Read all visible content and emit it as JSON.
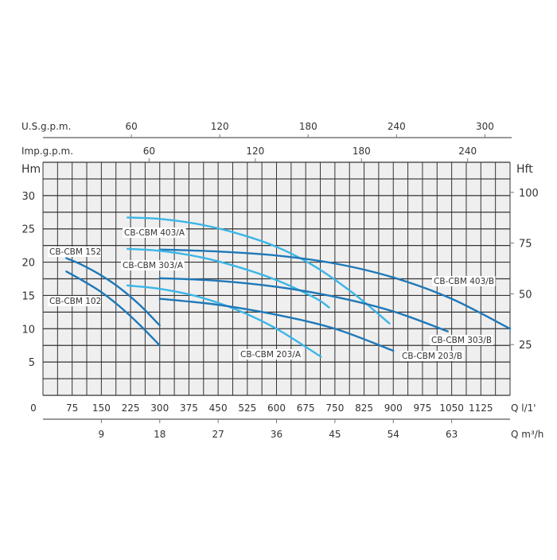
{
  "chart_data": {
    "type": "line",
    "title": "",
    "x_axis_bottom": {
      "label": "Q l/1'",
      "range": [
        0,
        1200
      ],
      "ticks": [
        0,
        75,
        150,
        225,
        300,
        375,
        450,
        525,
        600,
        675,
        750,
        825,
        900,
        975,
        1050,
        1125
      ]
    },
    "x_axis_m3h": {
      "label": "Q m³/h",
      "ticks": [
        9,
        18,
        27,
        36,
        45,
        54,
        63
      ]
    },
    "x_axis_usgpm": {
      "label": "U.S.g.p.m.",
      "ticks": [
        60,
        120,
        180,
        240,
        300
      ]
    },
    "x_axis_impgpm": {
      "label": "Imp.g.p.m.",
      "ticks": [
        60,
        120,
        180,
        240
      ]
    },
    "y_axis_left": {
      "label": "Hm",
      "range": [
        0,
        35
      ],
      "ticks": [
        5,
        10,
        15,
        20,
        25,
        30
      ]
    },
    "y_axis_right": {
      "label": "Hft",
      "ticks": [
        25,
        50,
        75,
        100
      ]
    },
    "grid": true,
    "colors": {
      "light": "#3cb6e6",
      "dark": "#1f78b8",
      "plot_bg": "#efefef",
      "grid": "#333333"
    },
    "series": [
      {
        "name": "CB-CBM 152",
        "color": "dark",
        "points": [
          [
            60,
            20.6
          ],
          [
            100,
            19.6
          ],
          [
            150,
            18.0
          ],
          [
            200,
            16.0
          ],
          [
            250,
            13.5
          ],
          [
            300,
            10.5
          ]
        ]
      },
      {
        "name": "CB-CBM 102",
        "color": "dark",
        "points": [
          [
            60,
            18.6
          ],
          [
            100,
            17.3
          ],
          [
            150,
            15.5
          ],
          [
            200,
            13.2
          ],
          [
            250,
            10.5
          ],
          [
            300,
            7.5
          ]
        ]
      },
      {
        "name": "CB-CBM 403/A",
        "color": "light",
        "points": [
          [
            217,
            26.7
          ],
          [
            300,
            26.5
          ],
          [
            400,
            25.7
          ],
          [
            500,
            24.3
          ],
          [
            600,
            22.3
          ],
          [
            700,
            19.3
          ],
          [
            800,
            15.2
          ],
          [
            890,
            10.8
          ]
        ]
      },
      {
        "name": "CB-CBM 403/B",
        "color": "dark",
        "points": [
          [
            300,
            21.9
          ],
          [
            450,
            21.6
          ],
          [
            600,
            21.0
          ],
          [
            750,
            19.8
          ],
          [
            900,
            17.7
          ],
          [
            1050,
            14.5
          ],
          [
            1200,
            10.0
          ]
        ]
      },
      {
        "name": "CB-CBM 303/A",
        "color": "light",
        "points": [
          [
            217,
            22.0
          ],
          [
            300,
            21.7
          ],
          [
            400,
            20.8
          ],
          [
            500,
            19.3
          ],
          [
            600,
            17.3
          ],
          [
            700,
            14.6
          ],
          [
            735,
            13.2
          ]
        ]
      },
      {
        "name": "CB-CBM 303/B",
        "color": "dark",
        "points": [
          [
            300,
            17.6
          ],
          [
            450,
            17.2
          ],
          [
            600,
            16.3
          ],
          [
            750,
            14.8
          ],
          [
            900,
            12.6
          ],
          [
            1040,
            9.6
          ]
        ]
      },
      {
        "name": "CB-CBM 203/A",
        "color": "light",
        "points": [
          [
            217,
            16.5
          ],
          [
            300,
            16.0
          ],
          [
            400,
            14.8
          ],
          [
            500,
            12.8
          ],
          [
            600,
            10.0
          ],
          [
            714,
            5.8
          ]
        ]
      },
      {
        "name": "CB-CBM 203/B",
        "color": "dark",
        "points": [
          [
            300,
            14.5
          ],
          [
            450,
            13.6
          ],
          [
            600,
            12.1
          ],
          [
            750,
            10.0
          ],
          [
            900,
            6.7
          ]
        ]
      }
    ]
  }
}
